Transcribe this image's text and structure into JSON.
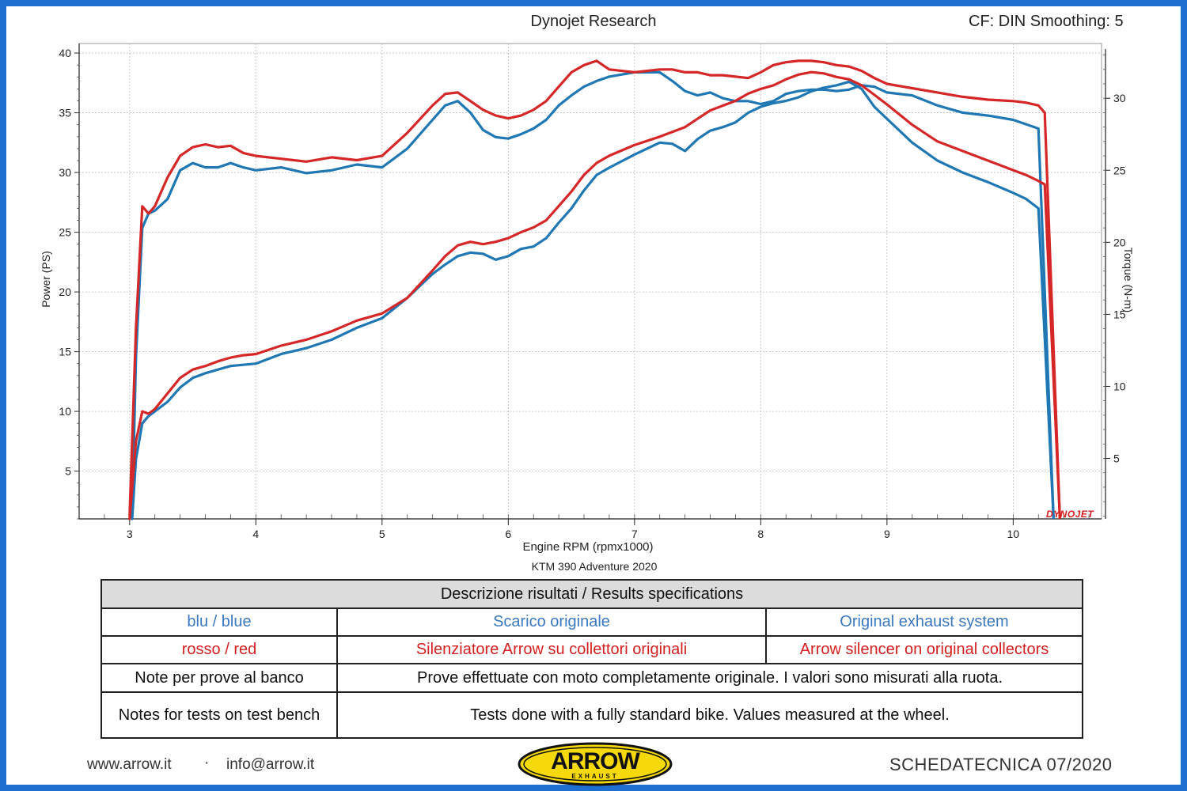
{
  "header": {
    "title": "Dynojet Research",
    "cf_smoothing": "CF: DIN Smoothing: 5"
  },
  "chart_data": {
    "type": "line",
    "title": "Dynojet Research",
    "subtitle": "KTM 390 Adventure 2020",
    "xlabel": "Engine RPM (rpmx1000)",
    "ylabel_left": "Power (PS)",
    "ylabel_right": "Torque (N-m)",
    "xlim": [
      2.6,
      10.7
    ],
    "ylim_left": [
      1,
      40.8
    ],
    "ylim_right": [
      0.8,
      33.8
    ],
    "x_ticks": [
      "3",
      "4",
      "5",
      "6",
      "7",
      "8",
      "9",
      "10"
    ],
    "y_left_ticks": [
      "5",
      "10",
      "15",
      "20",
      "25",
      "30",
      "35",
      "40"
    ],
    "y_right_ticks": [
      "5",
      "10",
      "15",
      "20",
      "25",
      "30"
    ],
    "grid": true,
    "series": [
      {
        "name": "blu / blue",
        "measure": "Power (PS)",
        "axis": "left",
        "color": "#1f77b4",
        "x": [
          3.02,
          3.05,
          3.1,
          3.15,
          3.2,
          3.3,
          3.4,
          3.5,
          3.6,
          3.7,
          3.8,
          3.9,
          4.0,
          4.2,
          4.4,
          4.6,
          4.8,
          5.0,
          5.2,
          5.4,
          5.5,
          5.6,
          5.7,
          5.8,
          5.9,
          6.0,
          6.1,
          6.2,
          6.3,
          6.4,
          6.5,
          6.6,
          6.7,
          6.8,
          7.0,
          7.2,
          7.3,
          7.4,
          7.5,
          7.6,
          7.7,
          7.8,
          7.9,
          8.0,
          8.1,
          8.2,
          8.3,
          8.4,
          8.5,
          8.6,
          8.7,
          8.8,
          8.9,
          9.0,
          9.2,
          9.4,
          9.6,
          9.8,
          10.0,
          10.1,
          10.2
        ],
        "y": [
          1.0,
          6.0,
          9.0,
          9.6,
          10.0,
          10.8,
          12.0,
          12.8,
          13.2,
          13.5,
          13.8,
          13.9,
          14.0,
          14.8,
          15.3,
          16.0,
          17.0,
          17.8,
          19.5,
          21.5,
          22.3,
          23.0,
          23.3,
          23.2,
          22.7,
          23.0,
          23.6,
          23.8,
          24.5,
          25.8,
          27.0,
          28.5,
          29.8,
          30.4,
          31.5,
          32.5,
          32.4,
          31.8,
          32.8,
          33.5,
          33.8,
          34.2,
          35.0,
          35.5,
          35.8,
          36.0,
          36.3,
          36.8,
          37.1,
          37.3,
          37.6,
          37.0,
          35.5,
          34.5,
          32.5,
          31.0,
          30.0,
          29.2,
          28.3,
          27.8,
          27.0
        ]
      },
      {
        "name": "blu / blue",
        "measure": "Torque (N-m)",
        "axis": "right",
        "color": "#1f77b4",
        "x": [
          3.02,
          3.05,
          3.1,
          3.15,
          3.2,
          3.3,
          3.4,
          3.5,
          3.6,
          3.7,
          3.8,
          3.9,
          4.0,
          4.2,
          4.4,
          4.6,
          4.8,
          5.0,
          5.2,
          5.4,
          5.5,
          5.6,
          5.7,
          5.8,
          5.9,
          6.0,
          6.1,
          6.2,
          6.3,
          6.4,
          6.5,
          6.6,
          6.7,
          6.8,
          7.0,
          7.2,
          7.3,
          7.4,
          7.5,
          7.6,
          7.7,
          7.8,
          7.9,
          8.0,
          8.1,
          8.2,
          8.3,
          8.4,
          8.5,
          8.6,
          8.7,
          8.8,
          8.9,
          9.0,
          9.2,
          9.4,
          9.6,
          9.8,
          10.0,
          10.1,
          10.2
        ],
        "y": [
          1.0,
          12.0,
          21.0,
          22.0,
          22.2,
          23.0,
          25.0,
          25.5,
          25.2,
          25.2,
          25.5,
          25.2,
          25.0,
          25.2,
          24.8,
          25.0,
          25.4,
          25.2,
          26.5,
          28.5,
          29.5,
          29.8,
          29.0,
          27.8,
          27.3,
          27.2,
          27.5,
          27.9,
          28.5,
          29.5,
          30.2,
          30.8,
          31.2,
          31.5,
          31.8,
          31.8,
          31.2,
          30.5,
          30.2,
          30.4,
          30.0,
          29.8,
          29.8,
          29.6,
          29.8,
          30.3,
          30.5,
          30.6,
          30.6,
          30.5,
          30.6,
          30.9,
          30.8,
          30.4,
          30.2,
          29.5,
          29.0,
          28.8,
          28.5,
          28.2,
          27.9
        ]
      },
      {
        "name": "rosso / red",
        "measure": "Power (PS)",
        "axis": "left",
        "color": "#d62728",
        "x": [
          3.0,
          3.05,
          3.1,
          3.15,
          3.2,
          3.3,
          3.4,
          3.5,
          3.6,
          3.7,
          3.8,
          3.9,
          4.0,
          4.2,
          4.4,
          4.6,
          4.8,
          5.0,
          5.2,
          5.4,
          5.5,
          5.6,
          5.7,
          5.8,
          5.9,
          6.0,
          6.1,
          6.2,
          6.3,
          6.4,
          6.5,
          6.6,
          6.7,
          6.8,
          7.0,
          7.2,
          7.3,
          7.4,
          7.5,
          7.6,
          7.7,
          7.8,
          7.9,
          8.0,
          8.1,
          8.2,
          8.3,
          8.4,
          8.5,
          8.6,
          8.7,
          8.8,
          8.9,
          9.0,
          9.2,
          9.4,
          9.6,
          9.8,
          10.0,
          10.1,
          10.2,
          10.25
        ],
        "y": [
          1.0,
          7.5,
          10.0,
          9.8,
          10.2,
          11.5,
          12.8,
          13.5,
          13.8,
          14.2,
          14.5,
          14.7,
          14.8,
          15.5,
          16.0,
          16.7,
          17.6,
          18.2,
          19.5,
          21.8,
          23.0,
          23.9,
          24.2,
          24.0,
          24.2,
          24.5,
          25.0,
          25.4,
          26.0,
          27.2,
          28.4,
          29.8,
          30.8,
          31.4,
          32.3,
          33.0,
          33.4,
          33.8,
          34.5,
          35.2,
          35.6,
          36.0,
          36.6,
          37.0,
          37.3,
          37.8,
          38.2,
          38.4,
          38.3,
          38.0,
          37.8,
          37.3,
          36.5,
          35.7,
          34.0,
          32.6,
          31.8,
          31.0,
          30.2,
          29.8,
          29.3,
          29.0
        ]
      },
      {
        "name": "rosso / red",
        "measure": "Torque (N-m)",
        "axis": "right",
        "color": "#d62728",
        "x": [
          3.0,
          3.05,
          3.1,
          3.15,
          3.2,
          3.3,
          3.4,
          3.5,
          3.6,
          3.7,
          3.8,
          3.9,
          4.0,
          4.2,
          4.4,
          4.6,
          4.8,
          5.0,
          5.2,
          5.4,
          5.5,
          5.6,
          5.7,
          5.8,
          5.9,
          6.0,
          6.1,
          6.2,
          6.3,
          6.4,
          6.5,
          6.6,
          6.7,
          6.8,
          7.0,
          7.2,
          7.3,
          7.4,
          7.5,
          7.6,
          7.7,
          7.8,
          7.9,
          8.0,
          8.1,
          8.2,
          8.3,
          8.4,
          8.5,
          8.6,
          8.7,
          8.8,
          8.9,
          9.0,
          9.2,
          9.4,
          9.6,
          9.8,
          10.0,
          10.1,
          10.2,
          10.25
        ],
        "y": [
          1.0,
          14.0,
          22.5,
          22.0,
          22.5,
          24.5,
          26.0,
          26.6,
          26.8,
          26.6,
          26.7,
          26.2,
          26.0,
          25.8,
          25.6,
          25.9,
          25.7,
          26.0,
          27.6,
          29.5,
          30.3,
          30.4,
          29.8,
          29.2,
          28.8,
          28.6,
          28.8,
          29.2,
          29.8,
          30.8,
          31.8,
          32.3,
          32.6,
          32.0,
          31.8,
          32.0,
          32.0,
          31.8,
          31.8,
          31.6,
          31.6,
          31.5,
          31.4,
          31.8,
          32.3,
          32.5,
          32.6,
          32.6,
          32.5,
          32.3,
          32.2,
          31.9,
          31.4,
          31.0,
          30.7,
          30.4,
          30.1,
          29.9,
          29.8,
          29.7,
          29.5,
          29.0
        ]
      }
    ]
  },
  "legend_table": {
    "header": "Descrizione risultati / Results specifications",
    "rows": [
      {
        "col1": "blu / blue",
        "col2": "Scarico originale",
        "col3": "Original exhaust system"
      },
      {
        "col1": "rosso / red",
        "col2": "Silenziatore Arrow su collettori originali",
        "col3": "Arrow silencer on original collectors"
      }
    ],
    "note_it_label": "Note per prove al banco",
    "note_it_text": "Prove effettuate con moto completamente originale. I valori sono misurati alla ruota.",
    "note_en_label": "Notes for tests on test bench",
    "note_en_text": "Tests done with a fully standard bike. Values measured at the wheel."
  },
  "footer": {
    "website": "www.arrow.it",
    "separator": "·",
    "email": "info@arrow.it",
    "logo_text": "ARROW",
    "logo_subtext": "EXHAUST",
    "sheet": "SCHEDATECNICA 07/2020",
    "watermark": "DYNOJET"
  },
  "colors": {
    "frame": "#1f6fd1",
    "blue": "#1f77b4",
    "red": "#d62728",
    "logo_yellow": "#f5d90a"
  }
}
